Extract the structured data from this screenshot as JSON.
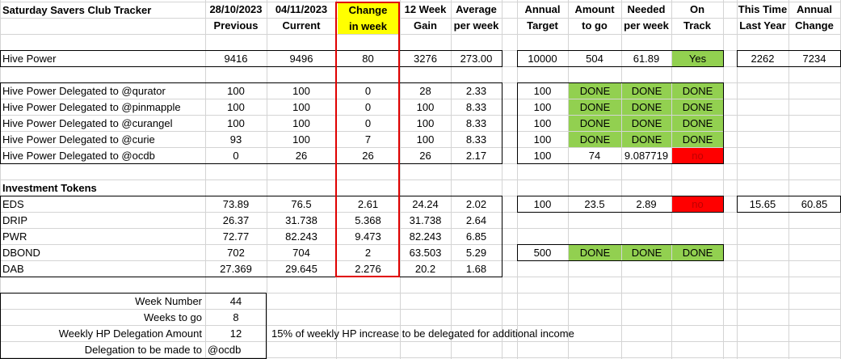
{
  "colors": {
    "grid": "#d4d4d4",
    "done_fill": "#92d050",
    "no_fill": "#ff0000",
    "no_text": "#c00000",
    "change_header_fill": "#ffff00",
    "change_column_border": "#e00000"
  },
  "title": "Saturday Savers Club Tracker",
  "headers": {
    "previous": [
      "28/10/2023",
      "Previous"
    ],
    "current": [
      "04/11/2023",
      "Current"
    ],
    "change": [
      "Change",
      "in week"
    ],
    "gain12": [
      "12 Week",
      "Gain"
    ],
    "avg_week": [
      "Average",
      "per week"
    ],
    "annual_target": [
      "Annual",
      "Target"
    ],
    "amount_to_go": [
      "Amount",
      "to go"
    ],
    "needed_per_week": [
      "Needed",
      "per week"
    ],
    "on_track": [
      "On",
      "Track"
    ],
    "last_year": [
      "This Time",
      "Last Year"
    ],
    "annual_change": [
      "Annual",
      "Change"
    ]
  },
  "hive_power": {
    "label": "Hive Power",
    "previous": "9416",
    "current": "9496",
    "change": "80",
    "gain12": "3276",
    "avg": "273.00",
    "target": "10000",
    "to_go": "504",
    "needed": "61.89",
    "on_track": "Yes",
    "last_year": "2262",
    "annual_change": "7234"
  },
  "delegations": [
    {
      "label": "Hive Power Delegated to @qurator",
      "previous": "100",
      "current": "100",
      "change": "0",
      "gain12": "28",
      "avg": "2.33",
      "target": "100",
      "to_go": "DONE",
      "needed": "DONE",
      "on_track": "DONE"
    },
    {
      "label": "Hive Power Delegated to @pinmapple",
      "previous": "100",
      "current": "100",
      "change": "0",
      "gain12": "100",
      "avg": "8.33",
      "target": "100",
      "to_go": "DONE",
      "needed": "DONE",
      "on_track": "DONE"
    },
    {
      "label": "Hive Power Delegated to @curangel",
      "previous": "100",
      "current": "100",
      "change": "0",
      "gain12": "100",
      "avg": "8.33",
      "target": "100",
      "to_go": "DONE",
      "needed": "DONE",
      "on_track": "DONE"
    },
    {
      "label": "Hive Power Delegated to @curie",
      "previous": "93",
      "current": "100",
      "change": "7",
      "gain12": "100",
      "avg": "8.33",
      "target": "100",
      "to_go": "DONE",
      "needed": "DONE",
      "on_track": "DONE"
    },
    {
      "label": "Hive Power Delegated to @ocdb",
      "previous": "0",
      "current": "26",
      "change": "26",
      "gain12": "26",
      "avg": "2.17",
      "target": "100",
      "to_go": "74",
      "needed": "9.087719",
      "on_track": "no"
    }
  ],
  "investment_title": "Investment Tokens",
  "tokens": [
    {
      "label": "EDS",
      "previous": "73.89",
      "current": "76.5",
      "change": "2.61",
      "gain12": "24.24",
      "avg": "2.02",
      "target": "100",
      "to_go": "23.5",
      "needed": "2.89",
      "on_track": "no",
      "last_year": "15.65",
      "annual_change": "60.85"
    },
    {
      "label": "DRIP",
      "previous": "26.37",
      "current": "31.738",
      "change": "5.368",
      "gain12": "31.738",
      "avg": "2.64"
    },
    {
      "label": "PWR",
      "previous": "72.77",
      "current": "82.243",
      "change": "9.473",
      "gain12": "82.243",
      "avg": "6.85"
    },
    {
      "label": "DBOND",
      "previous": "702",
      "current": "704",
      "change": "2",
      "gain12": "63.503",
      "avg": "5.29",
      "target": "500",
      "to_go": "DONE",
      "needed": "DONE",
      "on_track": "DONE"
    },
    {
      "label": "DAB",
      "previous": "27.369",
      "current": "29.645",
      "change": "2.276",
      "gain12": "20.2",
      "avg": "1.68"
    }
  ],
  "summary": {
    "week_number_label": "Week Number",
    "week_number": "44",
    "weeks_to_go_label": "Weeks to go",
    "weeks_to_go": "8",
    "weekly_delegation_label": "Weekly HP Delegation Amount",
    "weekly_delegation": "12",
    "weekly_delegation_note": "15% of weekly HP increase to be delegated for additional income",
    "delegation_to_label": "Delegation to be made to",
    "delegation_to": "@ocdb"
  }
}
